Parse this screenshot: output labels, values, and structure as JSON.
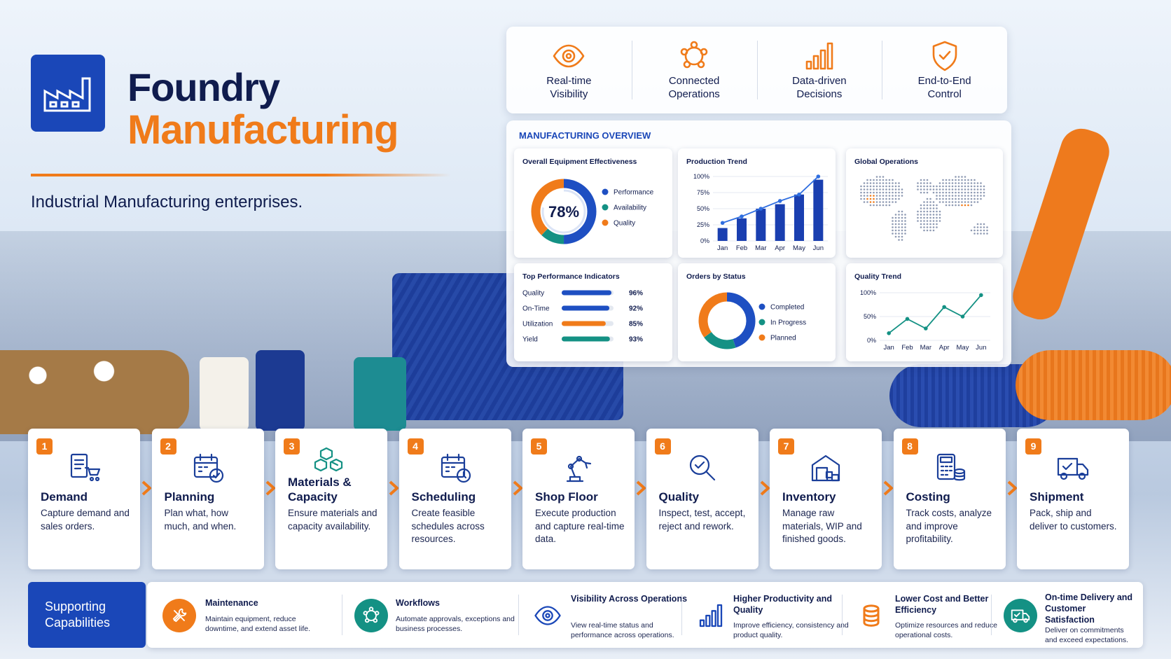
{
  "header": {
    "title_line1": "Foundry",
    "title_line2": "Manufacturing",
    "subtitle": "Industrial Manufacturing enterprises."
  },
  "features": [
    {
      "label": "Real-time Visibility"
    },
    {
      "label": "Connected Operations"
    },
    {
      "label": "Data-driven Decisions"
    },
    {
      "label": "End-to-End Control"
    }
  ],
  "overview": {
    "title": "MANUFACTURING OVERVIEW",
    "oee": {
      "type": "pie",
      "title": "Overall Equipment Effectiveness",
      "value": 78,
      "value_label": "78%",
      "categories": [
        "Performance",
        "Availability",
        "Quality"
      ],
      "values": [
        50,
        12,
        38
      ],
      "colors": [
        "#1e4fc2",
        "#149184",
        "#f07b1a"
      ]
    },
    "production": {
      "type": "bar",
      "title": "Production Trend",
      "categories": [
        "Jan",
        "Feb",
        "Mar",
        "Apr",
        "May",
        "Jun"
      ],
      "series": [
        {
          "type": "bar",
          "color": "#1a3fb0",
          "values": [
            20,
            35,
            50,
            57,
            72,
            95
          ]
        },
        {
          "type": "line",
          "color": "#2f6ee0",
          "values": [
            28,
            38,
            50,
            62,
            72,
            100
          ]
        }
      ],
      "ylim": [
        0,
        100
      ],
      "yticks": [
        {
          "value": 0,
          "label": "0%"
        },
        {
          "value": 25,
          "label": "25%"
        },
        {
          "value": 50,
          "label": "50%"
        },
        {
          "value": 75,
          "label": "75%"
        },
        {
          "value": 100,
          "label": "100%"
        }
      ]
    },
    "map": {
      "title": "Global Operations"
    },
    "kpis": {
      "type": "bar",
      "title": "Top Performance Indicators",
      "categories": [
        "Quality",
        "On-Time",
        "Utilization",
        "Yield"
      ],
      "values": [
        96,
        92,
        85,
        93
      ],
      "value_labels": [
        "96%",
        "92%",
        "85%",
        "93%"
      ],
      "colors": [
        "#1e4fc2",
        "#1e4fc2",
        "#f07b1a",
        "#149184"
      ],
      "xlim": [
        0,
        100
      ]
    },
    "orders": {
      "type": "pie",
      "title": "Orders by Status",
      "categories": [
        "Completed",
        "In Progress",
        "Planned"
      ],
      "values": [
        45,
        20,
        35
      ],
      "colors": [
        "#1e4fc2",
        "#149184",
        "#f07b1a"
      ]
    },
    "quality": {
      "type": "line",
      "title": "Quality Trend",
      "categories": [
        "Jan",
        "Feb",
        "Mar",
        "Apr",
        "May",
        "Jun"
      ],
      "values": [
        15,
        45,
        25,
        70,
        50,
        95
      ],
      "color": "#149184",
      "ylim": [
        0,
        100
      ],
      "yticks": [
        {
          "value": 0,
          "label": "0%"
        },
        {
          "value": 50,
          "label": "50%"
        },
        {
          "value": 100,
          "label": "100%"
        }
      ]
    }
  },
  "steps": [
    {
      "number": 1,
      "title": "Demand",
      "desc": "Capture demand and sales orders."
    },
    {
      "number": 2,
      "title": "Planning",
      "desc": "Plan what, how much, and when."
    },
    {
      "number": 3,
      "title": "Materials & Capacity",
      "desc": "Ensure materials and capacity availability."
    },
    {
      "number": 4,
      "title": "Scheduling",
      "desc": "Create feasible schedules across resources."
    },
    {
      "number": 5,
      "title": "Shop Floor",
      "desc": "Execute production and capture real-time data."
    },
    {
      "number": 6,
      "title": "Quality",
      "desc": "Inspect, test, accept, reject and rework."
    },
    {
      "number": 7,
      "title": "Inventory",
      "desc": "Manage raw materials, WIP and finished goods."
    },
    {
      "number": 8,
      "title": "Costing",
      "desc": "Track costs, analyze and improve profitability."
    },
    {
      "number": 9,
      "title": "Shipment",
      "desc": "Pack, ship and deliver to customers."
    }
  ],
  "support": {
    "title": "Supporting Capabilities",
    "items": [
      {
        "title": "Maintenance",
        "desc": "Maintain equipment, reduce downtime, and extend asset life."
      },
      {
        "title": "Workflows",
        "desc": "Automate approvals, exceptions and business processes."
      },
      {
        "title": "Visibility Across Operations",
        "desc": "View real-time status and performance across operations."
      },
      {
        "title": "Higher Productivity and Quality",
        "desc": "Improve efficiency, consistency and product quality."
      },
      {
        "title": "Lower Cost and Better Efficiency",
        "desc": "Optimize resources and reduce operational costs."
      },
      {
        "title": "On-time Delivery and Customer Satisfaction",
        "desc": "Deliver on commitments and exceed expectations."
      }
    ]
  }
}
